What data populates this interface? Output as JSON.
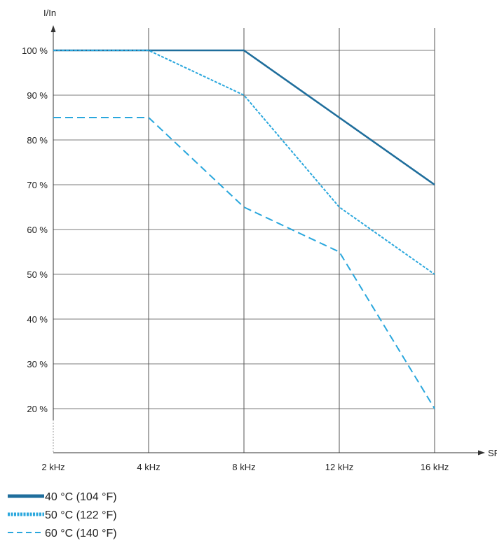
{
  "chart_data": {
    "type": "line",
    "title": "",
    "xlabel": "SF",
    "ylabel": "I/In",
    "categories": [
      "2 kHz",
      "4 kHz",
      "8 kHz",
      "12 kHz",
      "16 kHz"
    ],
    "y_ticks": [
      {
        "value": 20,
        "label": "20 %"
      },
      {
        "value": 30,
        "label": "30 %"
      },
      {
        "value": 40,
        "label": "40 %"
      },
      {
        "value": 50,
        "label": "50 %"
      },
      {
        "value": 60,
        "label": "60 %"
      },
      {
        "value": 70,
        "label": "70 %"
      },
      {
        "value": 80,
        "label": "80 %"
      },
      {
        "value": 90,
        "label": "90 %"
      },
      {
        "value": 100,
        "label": "100 %"
      }
    ],
    "ylim": [
      10,
      105
    ],
    "grid": true,
    "legend_position": "bottom-left",
    "series": [
      {
        "name": "40 °C (104 °F)",
        "values": [
          100,
          100,
          100,
          85,
          70
        ],
        "style": "solid",
        "color": "#1f6e9c"
      },
      {
        "name": "50 °C (122 °F)",
        "values": [
          100,
          100,
          90,
          65,
          50
        ],
        "style": "dotted",
        "color": "#2aa7dd"
      },
      {
        "name": "60 °C (140 °F)",
        "values": [
          85,
          85,
          65,
          55,
          20
        ],
        "style": "dashed",
        "color": "#2aa7dd"
      }
    ]
  }
}
